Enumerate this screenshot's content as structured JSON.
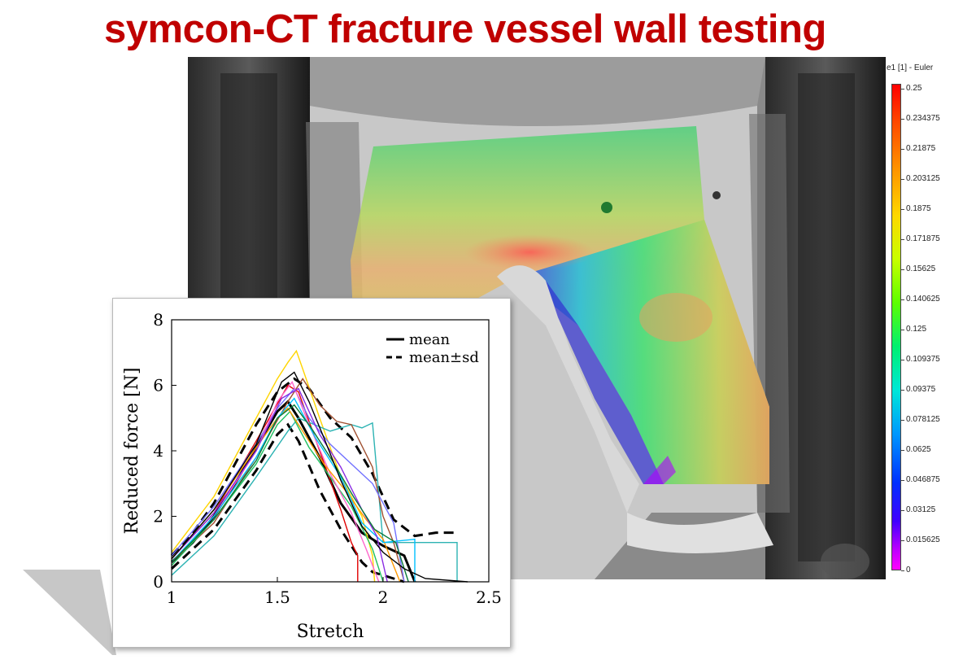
{
  "header": {
    "title": "symcon-CT fracture vessel wall testing"
  },
  "colorbar": {
    "title": "e1 [1] - Euler",
    "ticks": [
      "0.25",
      "0.234375",
      "0.21875",
      "0.203125",
      "0.1875",
      "0.171875",
      "0.15625",
      "0.140625",
      "0.125",
      "0.109375",
      "0.09375",
      "0.078125",
      "0.0625",
      "0.046875",
      "0.03125",
      "0.015625",
      "0"
    ],
    "colors": {
      "max": "#ff0000",
      "mid": "#00f070",
      "min": "#ff00ff"
    }
  },
  "chart_data": {
    "type": "line",
    "xlabel": "Stretch",
    "ylabel": "Reduced force [N]",
    "xlim": [
      1,
      2.5
    ],
    "ylim": [
      0,
      8
    ],
    "x_ticks": [
      "1",
      "1.5",
      "2",
      "2.5"
    ],
    "y_ticks": [
      "0",
      "2",
      "4",
      "6",
      "8"
    ],
    "grid": false,
    "legend_position": "top-right",
    "legend": [
      {
        "label": "mean",
        "style": "solid"
      },
      {
        "label": "mean±sd",
        "style": "dashed"
      }
    ],
    "series": [
      {
        "name": "mean",
        "color": "#000000",
        "style": "solid",
        "x": [
          1,
          1.1,
          1.2,
          1.3,
          1.4,
          1.5,
          1.55,
          1.6,
          1.7,
          1.8,
          1.9,
          2.0,
          2.1,
          2.15
        ],
        "y": [
          0.6,
          1.2,
          2.0,
          3.0,
          4.1,
          5.2,
          5.5,
          5.0,
          3.8,
          2.4,
          1.5,
          1.1,
          0.8,
          0
        ]
      },
      {
        "name": "mean+sd",
        "color": "#000000",
        "style": "dashed",
        "x": [
          1,
          1.1,
          1.2,
          1.3,
          1.4,
          1.5,
          1.58,
          1.65,
          1.75,
          1.85,
          1.95,
          2.05,
          2.15,
          2.25,
          2.35
        ],
        "y": [
          0.8,
          1.5,
          2.4,
          3.6,
          4.8,
          5.8,
          6.2,
          5.9,
          5.0,
          4.4,
          3.3,
          1.9,
          1.4,
          1.5,
          1.5
        ]
      },
      {
        "name": "mean-sd",
        "color": "#000000",
        "style": "dashed",
        "x": [
          1,
          1.1,
          1.2,
          1.3,
          1.4,
          1.5,
          1.55,
          1.6,
          1.7,
          1.8,
          1.9,
          1.95,
          2.0,
          2.1
        ],
        "y": [
          0.4,
          1.0,
          1.6,
          2.5,
          3.4,
          4.5,
          4.8,
          4.3,
          2.8,
          1.6,
          0.6,
          0.3,
          0.2,
          0
        ]
      },
      {
        "name": "",
        "color": "#ffd500",
        "style": "solid",
        "x": [
          1,
          1.2,
          1.4,
          1.5,
          1.55,
          1.59,
          1.62,
          1.7,
          1.8,
          1.9,
          1.95,
          1.96
        ],
        "y": [
          0.9,
          2.6,
          5.0,
          6.2,
          6.7,
          7.05,
          6.5,
          5.0,
          3.2,
          2.0,
          0.8,
          0
        ]
      },
      {
        "name": "",
        "color": "#e00000",
        "style": "solid",
        "x": [
          1,
          1.2,
          1.4,
          1.55,
          1.6,
          1.7,
          1.8,
          1.85,
          1.88,
          1.88
        ],
        "y": [
          0.7,
          2.1,
          4.3,
          6.0,
          5.8,
          4.0,
          2.2,
          1.2,
          0.8,
          0
        ]
      },
      {
        "name": "",
        "color": "#2db3b3",
        "style": "solid",
        "x": [
          1,
          1.2,
          1.4,
          1.55,
          1.6,
          1.75,
          1.85,
          1.9,
          1.95,
          2.0,
          2.3,
          2.35,
          2.35
        ],
        "y": [
          0.2,
          1.4,
          3.2,
          4.6,
          5.0,
          4.6,
          4.8,
          4.7,
          4.85,
          1.2,
          1.2,
          1.2,
          0
        ]
      },
      {
        "name": "",
        "color": "#a05030",
        "style": "solid",
        "x": [
          1,
          1.2,
          1.4,
          1.55,
          1.62,
          1.7,
          1.78,
          1.85,
          1.95,
          2.0,
          2.05,
          2.1
        ],
        "y": [
          0.6,
          1.8,
          3.8,
          5.5,
          6.2,
          5.4,
          4.9,
          4.8,
          3.5,
          2.0,
          1.2,
          0
        ]
      },
      {
        "name": "",
        "color": "#7070ff",
        "style": "solid",
        "x": [
          1,
          1.2,
          1.4,
          1.5,
          1.58,
          1.65,
          1.75,
          1.85,
          1.95,
          2.05,
          2.1
        ],
        "y": [
          0.8,
          2.3,
          4.2,
          5.3,
          5.9,
          5.0,
          4.2,
          3.6,
          3.0,
          1.8,
          0
        ]
      },
      {
        "name": "",
        "color": "#20c060",
        "style": "solid",
        "x": [
          1,
          1.2,
          1.4,
          1.5,
          1.56,
          1.65,
          1.75,
          1.85,
          1.95,
          2.0
        ],
        "y": [
          0.5,
          1.9,
          3.6,
          4.8,
          5.2,
          4.1,
          3.2,
          2.3,
          1.0,
          0
        ]
      },
      {
        "name": "",
        "color": "#ff66cc",
        "style": "solid",
        "x": [
          1,
          1.2,
          1.4,
          1.5,
          1.57,
          1.65,
          1.75,
          1.85,
          1.92,
          1.98
        ],
        "y": [
          0.6,
          2.0,
          4.0,
          5.5,
          6.1,
          4.8,
          3.3,
          2.1,
          1.0,
          0
        ]
      },
      {
        "name": "",
        "color": "#ff9900",
        "style": "solid",
        "x": [
          1,
          1.2,
          1.4,
          1.5,
          1.55,
          1.62,
          1.72,
          1.82,
          1.92,
          2.0,
          2.08
        ],
        "y": [
          0.7,
          2.2,
          4.1,
          5.0,
          5.3,
          4.6,
          3.6,
          2.8,
          1.9,
          1.3,
          0
        ]
      },
      {
        "name": "",
        "color": "#00c0ff",
        "style": "solid",
        "x": [
          1,
          1.2,
          1.4,
          1.5,
          1.58,
          1.68,
          1.8,
          1.9,
          2.0,
          2.15,
          2.15
        ],
        "y": [
          0.6,
          2.0,
          3.8,
          5.0,
          5.6,
          4.4,
          3.2,
          1.8,
          1.2,
          1.3,
          0
        ]
      },
      {
        "name": "",
        "color": "#8a2be2",
        "style": "solid",
        "x": [
          1,
          1.2,
          1.4,
          1.52,
          1.6,
          1.7,
          1.8,
          1.9,
          1.97,
          2.02
        ],
        "y": [
          0.7,
          2.1,
          4.0,
          5.6,
          5.9,
          4.5,
          3.5,
          2.2,
          1.4,
          0
        ]
      },
      {
        "name": "",
        "color": "#0a7a3a",
        "style": "solid",
        "x": [
          1,
          1.2,
          1.4,
          1.5,
          1.58,
          1.66,
          1.76,
          1.86,
          1.96,
          2.06,
          2.12
        ],
        "y": [
          0.6,
          1.9,
          3.7,
          5.0,
          5.4,
          4.7,
          3.7,
          2.6,
          1.6,
          1.2,
          0
        ]
      },
      {
        "name": "",
        "color": "#000000",
        "style": "solid",
        "x": [
          1,
          1.2,
          1.4,
          1.52,
          1.58,
          1.65,
          1.72,
          1.8,
          1.9,
          2.0,
          2.1,
          2.2,
          2.4
        ],
        "y": [
          0.7,
          2.2,
          4.2,
          6.1,
          6.4,
          5.5,
          4.4,
          3.1,
          1.7,
          0.9,
          0.4,
          0.1,
          0
        ]
      }
    ]
  }
}
